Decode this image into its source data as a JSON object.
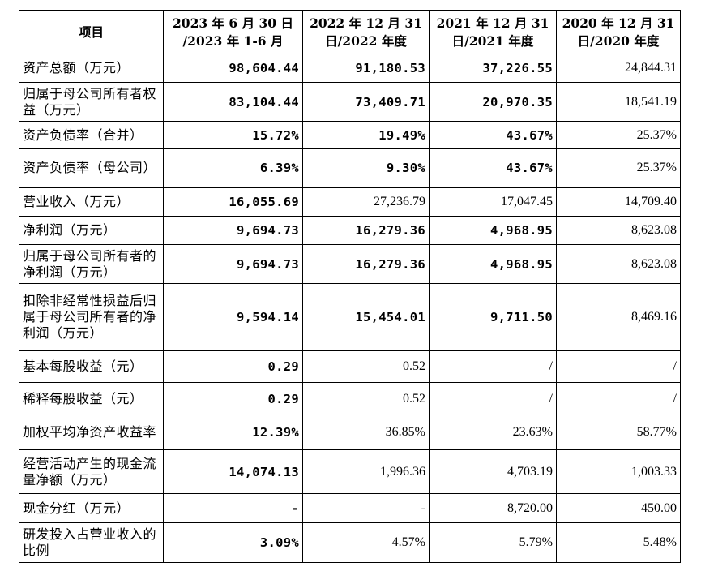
{
  "table": {
    "header": [
      "项目",
      "2023 年 6 月 30 日 /2023 年 1-6 月",
      "2022 年 12 月 31 日/2022 年度",
      "2021 年 12 月 31 日/2021 年度",
      "2020 年 12 月 31 日/2020 年度"
    ],
    "rows": [
      {
        "label": "资产总额（万元）",
        "cells": [
          {
            "v": "98,604.44",
            "b": true
          },
          {
            "v": "91,180.53",
            "b": true
          },
          {
            "v": "37,226.55",
            "b": true
          },
          {
            "v": "24,844.31",
            "b": false
          }
        ]
      },
      {
        "label": "归属于母公司所有者权益（万元）",
        "cells": [
          {
            "v": "83,104.44",
            "b": true
          },
          {
            "v": "73,409.71",
            "b": true
          },
          {
            "v": "20,970.35",
            "b": true
          },
          {
            "v": "18,541.19",
            "b": false
          }
        ]
      },
      {
        "label": "资产负债率（合并）",
        "cells": [
          {
            "v": "15.72%",
            "b": true
          },
          {
            "v": "19.49%",
            "b": true
          },
          {
            "v": "43.67%",
            "b": true
          },
          {
            "v": "25.37%",
            "b": false
          }
        ]
      },
      {
        "label": "资产负债率（母公司）",
        "cells": [
          {
            "v": "6.39%",
            "b": true
          },
          {
            "v": "9.30%",
            "b": true
          },
          {
            "v": "43.67%",
            "b": true
          },
          {
            "v": "25.37%",
            "b": false
          }
        ]
      },
      {
        "label": "营业收入（万元）",
        "cells": [
          {
            "v": "16,055.69",
            "b": true
          },
          {
            "v": "27,236.79",
            "b": false
          },
          {
            "v": "17,047.45",
            "b": false
          },
          {
            "v": "14,709.40",
            "b": false
          }
        ]
      },
      {
        "label": "净利润（万元）",
        "cells": [
          {
            "v": "9,694.73",
            "b": true
          },
          {
            "v": "16,279.36",
            "b": true
          },
          {
            "v": "4,968.95",
            "b": true
          },
          {
            "v": "8,623.08",
            "b": false
          }
        ]
      },
      {
        "label": "归属于母公司所有者的净利润（万元）",
        "cells": [
          {
            "v": "9,694.73",
            "b": true
          },
          {
            "v": "16,279.36",
            "b": true
          },
          {
            "v": "4,968.95",
            "b": true
          },
          {
            "v": "8,623.08",
            "b": false
          }
        ]
      },
      {
        "label": "扣除非经常性损益后归属于母公司所有者的净利润（万元）",
        "cells": [
          {
            "v": "9,594.14",
            "b": true
          },
          {
            "v": "15,454.01",
            "b": true
          },
          {
            "v": "9,711.50",
            "b": true
          },
          {
            "v": "8,469.16",
            "b": false
          }
        ]
      },
      {
        "label": "基本每股收益（元）",
        "cells": [
          {
            "v": "0.29",
            "b": true
          },
          {
            "v": "0.52",
            "b": false
          },
          {
            "v": "/",
            "b": false
          },
          {
            "v": "/",
            "b": false
          }
        ]
      },
      {
        "label": "稀释每股收益（元）",
        "cells": [
          {
            "v": "0.29",
            "b": true
          },
          {
            "v": "0.52",
            "b": false
          },
          {
            "v": "/",
            "b": false
          },
          {
            "v": "/",
            "b": false
          }
        ]
      },
      {
        "label": "加权平均净资产收益率",
        "cells": [
          {
            "v": "12.39%",
            "b": true
          },
          {
            "v": "36.85%",
            "b": false
          },
          {
            "v": "23.63%",
            "b": false
          },
          {
            "v": "58.77%",
            "b": false
          }
        ]
      },
      {
        "label": "经营活动产生的现金流量净额（万元）",
        "cells": [
          {
            "v": "14,074.13",
            "b": true
          },
          {
            "v": "1,996.36",
            "b": false
          },
          {
            "v": "4,703.19",
            "b": false
          },
          {
            "v": "1,003.33",
            "b": false
          }
        ]
      },
      {
        "label": "现金分红（万元）",
        "cells": [
          {
            "v": "-",
            "b": true
          },
          {
            "v": "-",
            "b": false
          },
          {
            "v": "8,720.00",
            "b": false
          },
          {
            "v": "450.00",
            "b": false
          }
        ]
      },
      {
        "label": "研发投入占营业收入的比例",
        "cells": [
          {
            "v": "3.09%",
            "b": true
          },
          {
            "v": "4.57%",
            "b": false
          },
          {
            "v": "5.79%",
            "b": false
          },
          {
            "v": "5.48%",
            "b": false
          }
        ]
      }
    ]
  }
}
